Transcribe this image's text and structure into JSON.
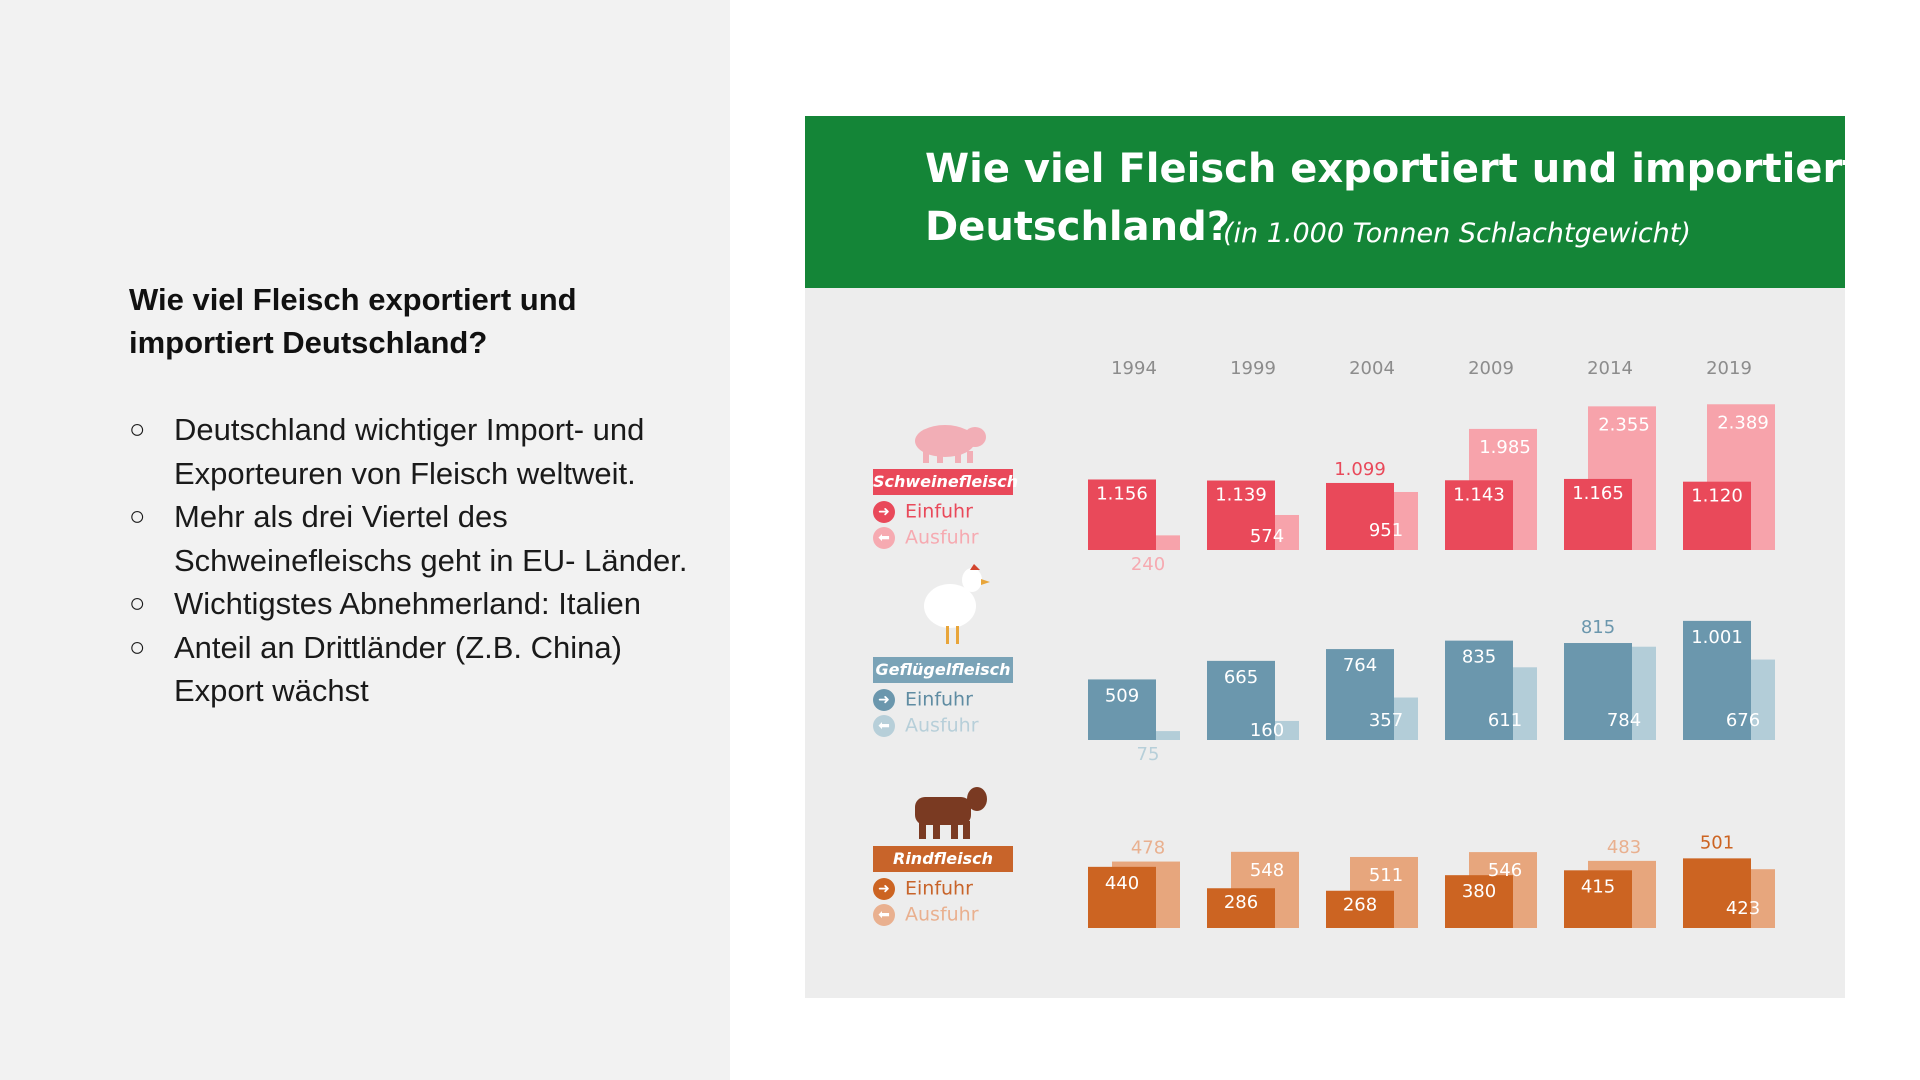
{
  "slide": {
    "title": "Wie viel Fleisch exportiert und importiert Deutschland?",
    "bullets": [
      "Deutschland wichtiger Import- und Exporteuren von Fleisch weltweit.",
      "Mehr als drei Viertel des Schweinefleischs geht in EU- Länder.",
      "Wichtigstes Abnehmerland: Italien",
      "Anteil an Drittländer (Z.B. China) Export wächst"
    ],
    "bullet_marker": "○"
  },
  "chart_data": {
    "type": "bar",
    "title_line1": "Wie viel Fleisch exportiert und importiert",
    "title_line2": "Deutschland?",
    "subtitle": "(in 1.000 Tonnen Schlachtgewicht)",
    "categories": [
      "1994",
      "1999",
      "2004",
      "2009",
      "2014",
      "2019"
    ],
    "series_labels": [
      "Einfuhr",
      "Ausfuhr"
    ],
    "groups": [
      {
        "name": "Schweinefleisch",
        "icon": "pig-icon",
        "einfuhr": [
          1156,
          1139,
          1099,
          1143,
          1165,
          1120
        ],
        "ausfuhr": [
          240,
          574,
          951,
          1985,
          2355,
          2389
        ],
        "einfuhr_labels": [
          "1.156",
          "1.139",
          "1.099",
          "1.143",
          "1.165",
          "1.120"
        ],
        "ausfuhr_labels": [
          "240",
          "574",
          "951",
          "1.985",
          "2.355",
          "2.389"
        ],
        "colors": {
          "einfuhr": "#e9495a",
          "ausfuhr": "#f7a3ab",
          "badge": "#e9495a",
          "ausfuhr_text": "#f6aab1",
          "icon": "#f2aeb6"
        }
      },
      {
        "name": "Geflügelfleisch",
        "icon": "chicken-icon",
        "einfuhr": [
          509,
          665,
          764,
          835,
          815,
          1001
        ],
        "ausfuhr": [
          75,
          160,
          357,
          611,
          784,
          676
        ],
        "einfuhr_labels": [
          "509",
          "665",
          "764",
          "835",
          "815",
          "1.001"
        ],
        "ausfuhr_labels": [
          "75",
          "160",
          "357",
          "611",
          "784",
          "676"
        ],
        "colors": {
          "einfuhr": "#6b97ad",
          "ausfuhr": "#b3cdd8",
          "badge": "#7aa3b7",
          "ausfuhr_text": "#b7cfd9",
          "icon": "#ffffff"
        }
      },
      {
        "name": "Rindfleisch",
        "icon": "cow-icon",
        "einfuhr": [
          440,
          286,
          268,
          380,
          415,
          501
        ],
        "ausfuhr": [
          478,
          548,
          511,
          546,
          483,
          423
        ],
        "einfuhr_labels": [
          "440",
          "286",
          "268",
          "380",
          "415",
          "501"
        ],
        "ausfuhr_labels": [
          "478",
          "548",
          "511",
          "546",
          "483",
          "423"
        ],
        "colors": {
          "einfuhr": "#cc6422",
          "ausfuhr": "#e7a67d",
          "badge": "#c8642a",
          "ausfuhr_text": "#e9b08f",
          "icon": "#7a3a22"
        }
      }
    ]
  }
}
